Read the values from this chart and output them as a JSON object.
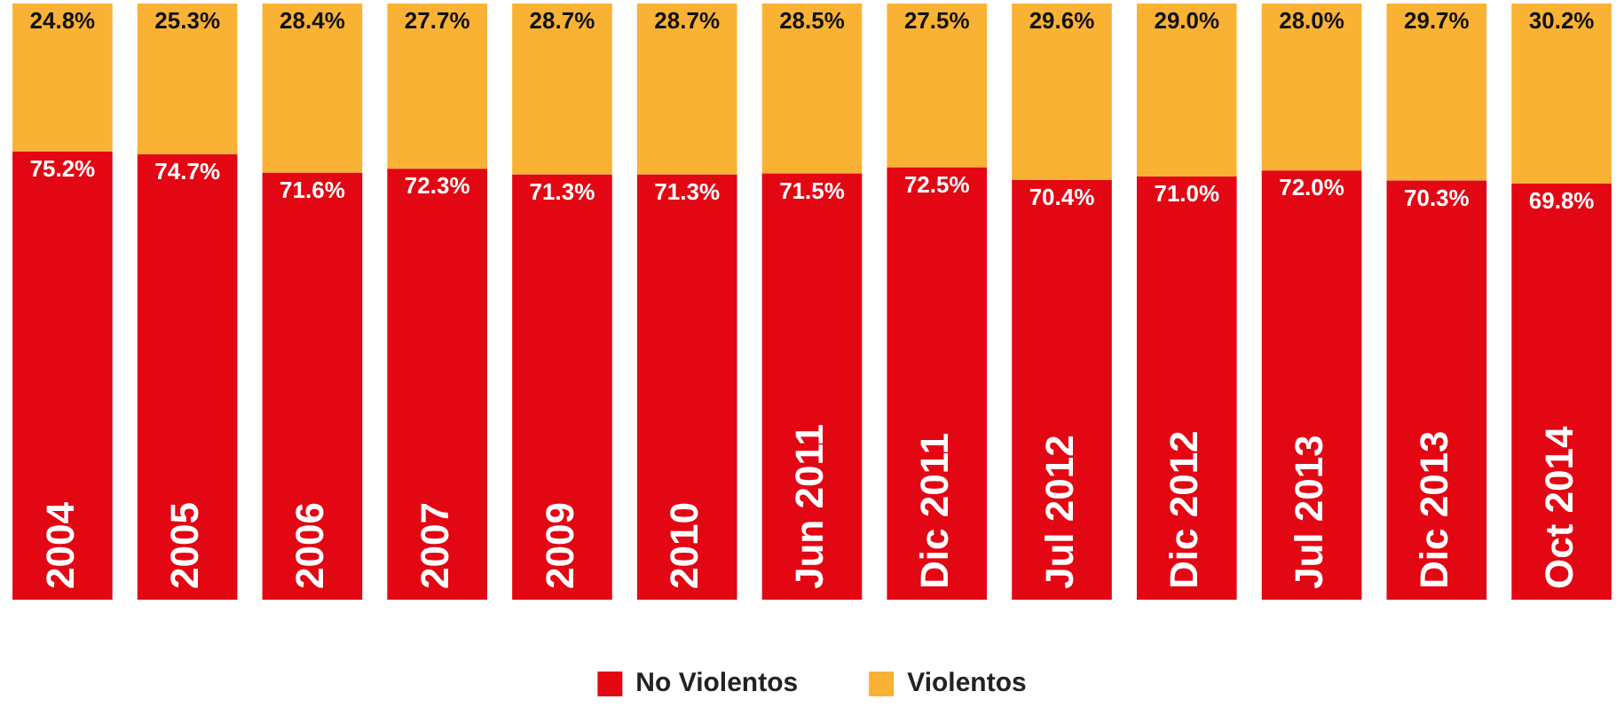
{
  "chart_data": {
    "type": "bar",
    "stacked": true,
    "legend": "bottom",
    "ylim": [
      0,
      100
    ],
    "categories": [
      "2004",
      "2005",
      "2006",
      "2007",
      "2009",
      "2010",
      "Jun 2011",
      "Dic 2011",
      "Jul 2012",
      "Dic 2012",
      "Jul 2013",
      "Dic 2013",
      "Oct 2014"
    ],
    "series": [
      {
        "name": "No Violentos",
        "color": "#e30613",
        "values": [
          75.2,
          74.7,
          71.6,
          72.3,
          71.3,
          71.3,
          71.5,
          72.5,
          70.4,
          71.0,
          72.0,
          70.3,
          69.8
        ],
        "value_labels": [
          "75.2%",
          "74.7%",
          "71.6%",
          "72.3%",
          "71.3%",
          "71.3%",
          "71.5%",
          "72.5%",
          "70.4%",
          "71.0%",
          "72.0%",
          "70.3%",
          "69.8%"
        ]
      },
      {
        "name": "Violentos",
        "color": "#f9b234",
        "values": [
          24.8,
          25.3,
          28.4,
          27.7,
          28.7,
          28.7,
          28.5,
          27.5,
          29.6,
          29.0,
          28.0,
          29.7,
          30.2
        ],
        "value_labels": [
          "24.8%",
          "25.3%",
          "28.4%",
          "27.7%",
          "28.7%",
          "28.7%",
          "28.5%",
          "27.5%",
          "29.6%",
          "29.0%",
          "28.0%",
          "29.7%",
          "30.2%"
        ]
      }
    ]
  }
}
